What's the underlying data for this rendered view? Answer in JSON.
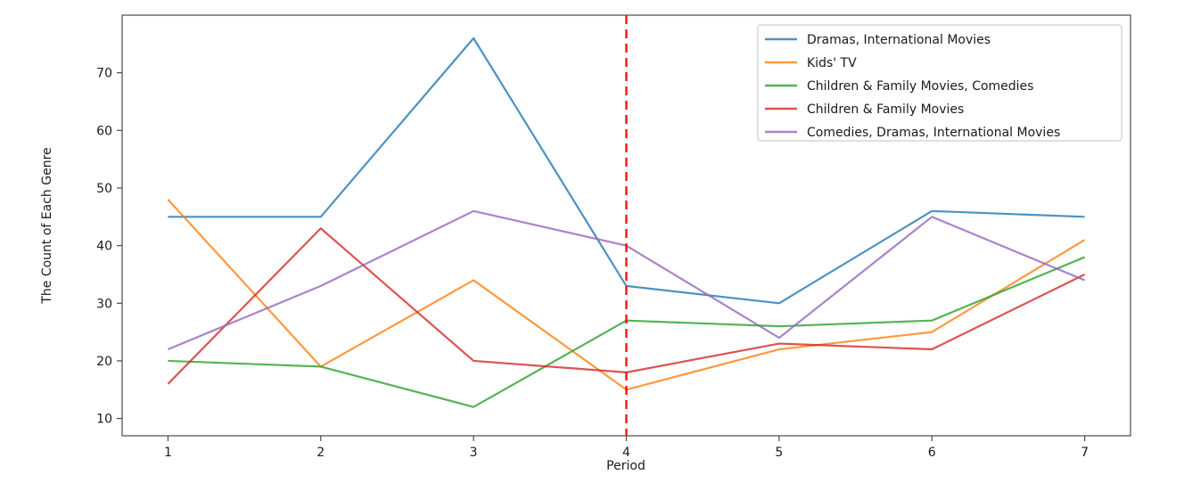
{
  "figure": {
    "background": "#ffffff",
    "frame_color": "#4a4a4a",
    "text_color": "#1a1a1a",
    "legend_border_color": "#cccccc"
  },
  "chart_data": {
    "type": "line",
    "title": "",
    "xlabel": "Period",
    "ylabel": "The Count of Each Genre",
    "x": [
      1,
      2,
      3,
      4,
      5,
      6,
      7
    ],
    "xticks": [
      "1",
      "2",
      "3",
      "4",
      "5",
      "6",
      "7"
    ],
    "yticks": [
      "10",
      "20",
      "30",
      "40",
      "50",
      "60",
      "70"
    ],
    "ytick_values": [
      10,
      20,
      30,
      40,
      50,
      60,
      70
    ],
    "xlim": [
      0.7,
      7.3
    ],
    "ylim": [
      7,
      80
    ],
    "grid": false,
    "legend_position": "upper right",
    "line_opacity": 0.8,
    "series": [
      {
        "name": "Dramas, International Movies",
        "color": "#1f77b4",
        "values": [
          45,
          45,
          76,
          33,
          30,
          46,
          45
        ]
      },
      {
        "name": "Kids' TV",
        "color": "#ff7f0e",
        "values": [
          48,
          19,
          34,
          15,
          22,
          25,
          41
        ]
      },
      {
        "name": "Children & Family Movies, Comedies",
        "color": "#2ca02c",
        "values": [
          20,
          19,
          12,
          27,
          26,
          27,
          38
        ]
      },
      {
        "name": "Children & Family Movies",
        "color": "#d62728",
        "values": [
          16,
          43,
          20,
          18,
          23,
          22,
          35
        ]
      },
      {
        "name": "Comedies, Dramas, International Movies",
        "color": "#9467bd",
        "values": [
          22,
          33,
          46,
          40,
          24,
          45,
          34
        ]
      }
    ],
    "vline": {
      "x": 4,
      "color": "#ff0000",
      "style": "dashed",
      "opacity": 0.92
    }
  }
}
